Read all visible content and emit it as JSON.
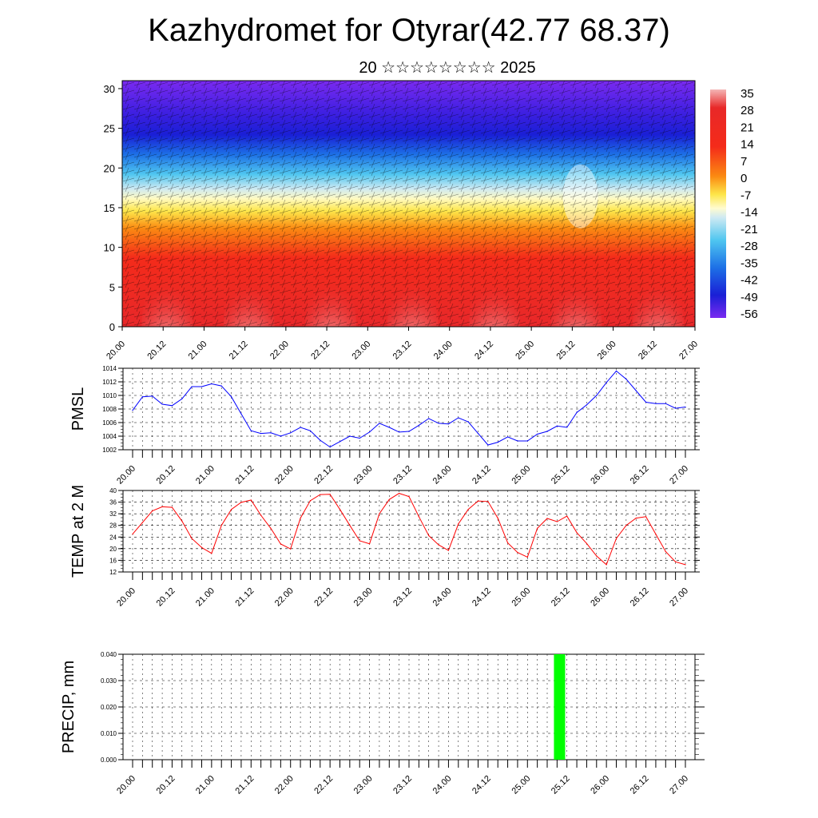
{
  "title": "Kazhydromet for Otyrar(42.77 68.37)",
  "subtitle": "20 ☆☆☆☆☆☆☆☆ 2025",
  "colors": {
    "pmsl_line": "#0000ff",
    "temp_line": "#ff0000",
    "precip_bar": "#00ff00",
    "grid": "#000000"
  },
  "chart_data": [
    {
      "type": "heatmap",
      "name": "cross-section",
      "y_ticks": [
        "0",
        "5",
        "10",
        "15",
        "20",
        "25",
        "30"
      ],
      "ylim": [
        0,
        31
      ],
      "x_ticks": [
        "20.00",
        "20.12",
        "21.00",
        "21.12",
        "22.00",
        "22.12",
        "23.00",
        "23.12",
        "24.00",
        "24.12",
        "25.00",
        "25.12",
        "26.00",
        "26.12",
        "27.00"
      ],
      "colorbar_labels": [
        "35",
        "28",
        "21",
        "14",
        "7",
        "0",
        "-7",
        "-14",
        "-21",
        "-28",
        "-35",
        "-42",
        "-49",
        "-56"
      ],
      "colorbar_range": [
        -63,
        42
      ],
      "overlay": "wind barbs"
    },
    {
      "type": "line",
      "name": "pmsl",
      "ylabel": "PMSL",
      "ylim": [
        1002,
        1014
      ],
      "y_ticks": [
        "1002",
        "1004",
        "1006",
        "1008",
        "1010",
        "1012",
        "1014"
      ],
      "x_ticks": [
        "20.00",
        "20.12",
        "21.00",
        "21.12",
        "22.00",
        "22.12",
        "23.00",
        "23.12",
        "24.00",
        "24.12",
        "25.00",
        "25.12",
        "26.00",
        "26.12",
        "27.00"
      ],
      "x_step_hours": 3,
      "values": [
        1007.8,
        1009.8,
        1009.9,
        1008.7,
        1008.5,
        1009.5,
        1011.3,
        1011.3,
        1011.7,
        1011.4,
        1009.8,
        1007.3,
        1004.8,
        1004.4,
        1004.5,
        1004.0,
        1004.5,
        1005.3,
        1004.8,
        1003.4,
        1002.4,
        1003.2,
        1004.0,
        1003.7,
        1004.6,
        1005.9,
        1005.3,
        1004.6,
        1004.7,
        1005.6,
        1006.6,
        1005.9,
        1005.8,
        1006.7,
        1006.1,
        1004.4,
        1002.7,
        1003.1,
        1003.9,
        1003.3,
        1003.3,
        1004.3,
        1004.7,
        1005.5,
        1005.3,
        1007.5,
        1008.6,
        1010.0,
        1011.9,
        1013.6,
        1012.4,
        1010.7,
        1009.0,
        1008.8,
        1008.8,
        1008.1,
        1008.3
      ]
    },
    {
      "type": "line",
      "name": "temperature",
      "ylabel": "TEMP at 2 M",
      "ylim": [
        12,
        40
      ],
      "y_ticks": [
        "12",
        "16",
        "20",
        "24",
        "28",
        "32",
        "36",
        "40"
      ],
      "x_ticks": [
        "20.00",
        "20.12",
        "21.00",
        "21.12",
        "22.00",
        "22.12",
        "23.00",
        "23.12",
        "24.00",
        "24.12",
        "25.00",
        "25.12",
        "26.00",
        "26.12",
        "27.00"
      ],
      "x_step_hours": 3,
      "values": [
        25.0,
        29.0,
        33.0,
        34.4,
        34.2,
        29.5,
        23.5,
        20.4,
        18.4,
        28.0,
        33.5,
        35.9,
        36.7,
        31.5,
        27.0,
        21.6,
        19.9,
        30.5,
        36.5,
        38.6,
        38.7,
        33.5,
        28.0,
        22.7,
        21.7,
        32.0,
        36.9,
        39.0,
        37.9,
        31.0,
        24.5,
        21.3,
        19.4,
        28.5,
        33.5,
        36.4,
        36.2,
        30.5,
        22.0,
        18.7,
        17.1,
        27.0,
        30.4,
        29.3,
        31.2,
        25.5,
        21.8,
        17.5,
        14.5,
        23.5,
        28.0,
        30.5,
        31.0,
        25.0,
        19.0,
        15.5,
        14.5
      ]
    },
    {
      "type": "bar",
      "name": "precipitation",
      "ylabel": "PRECIP, mm",
      "ylim": [
        0,
        0.04
      ],
      "y_ticks": [
        "0.000",
        "0.010",
        "0.020",
        "0.030",
        "0.040"
      ],
      "x_ticks": [
        "20.00",
        "20.12",
        "21.00",
        "21.12",
        "22.00",
        "22.12",
        "23.00",
        "23.12",
        "24.00",
        "24.12",
        "25.00",
        "25.12",
        "26.00",
        "26.12",
        "27.00"
      ],
      "x_step_hours": 3,
      "bars": [
        {
          "index": 43.25,
          "value": 0.04
        }
      ]
    }
  ]
}
